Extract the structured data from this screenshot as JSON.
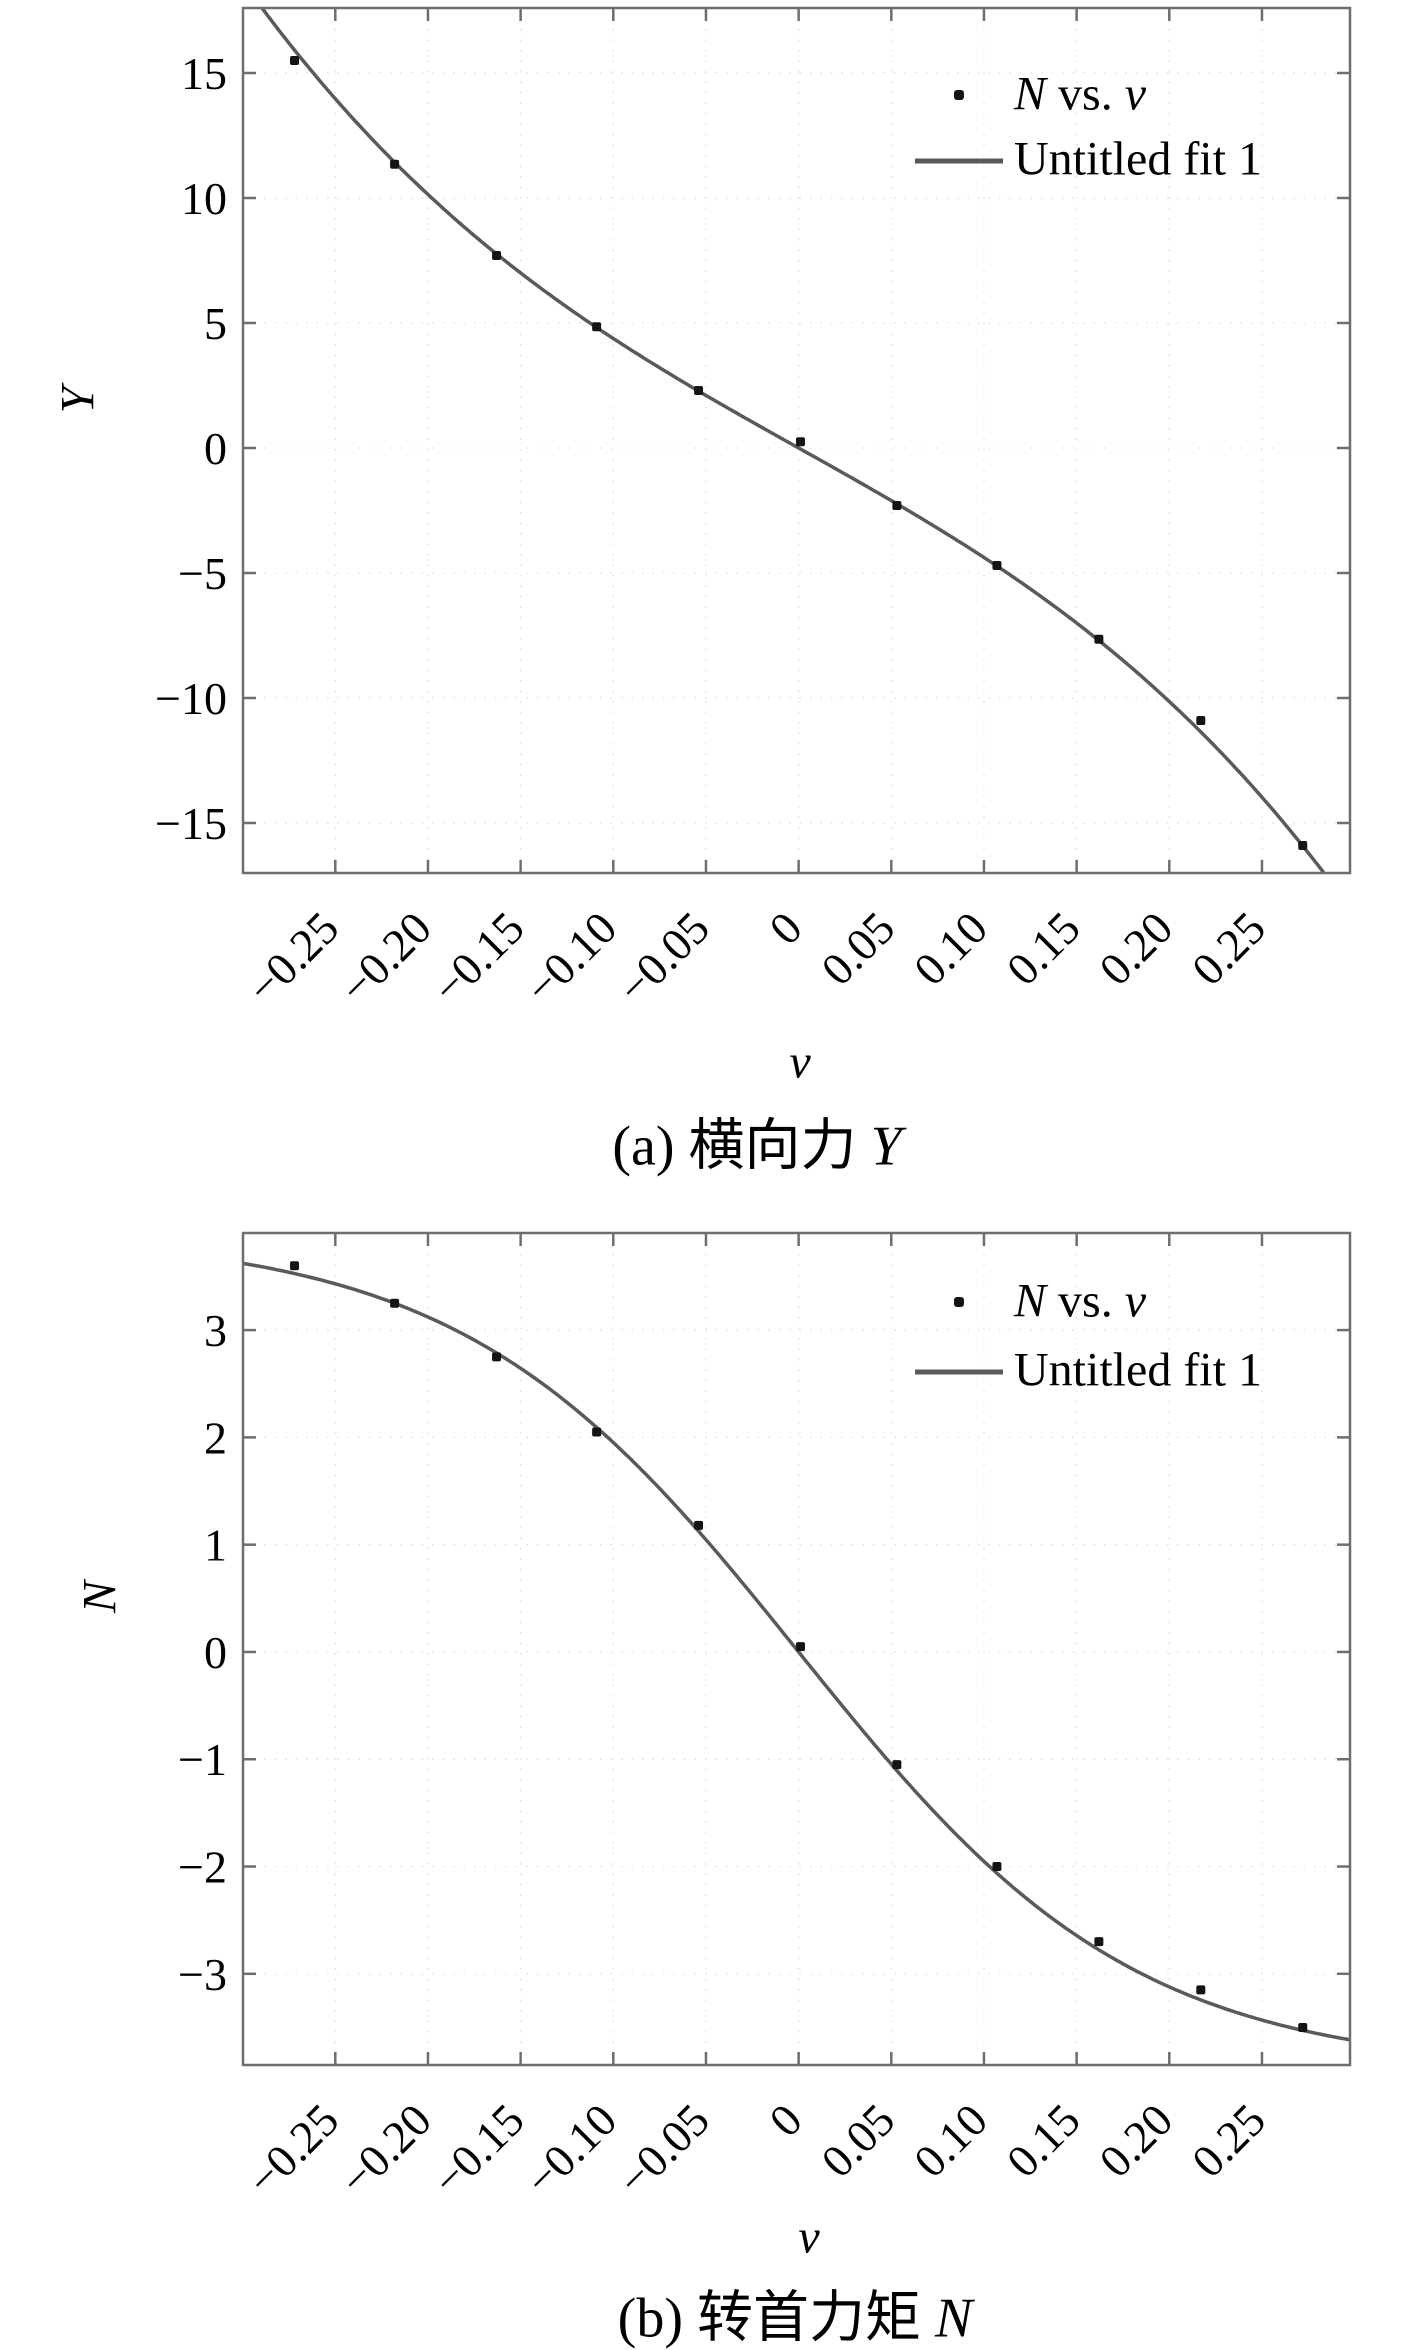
{
  "figure": {
    "background": "#ffffff"
  },
  "colors": {
    "axis_box": "#6e6e6e",
    "fit_line": "#5a5a5a",
    "marker": "#141414",
    "grid": "#c9c9c9",
    "text": "#000000"
  },
  "legend": {
    "scatter_sym1": "N",
    "scatter_mid": " vs. ",
    "scatter_sym2": "v",
    "fit_label": "Untitled fit 1"
  },
  "chart_data": [
    {
      "id": "a",
      "type": "scatter",
      "caption_prefix": "(a) 横向力 ",
      "caption_symbol": "Y",
      "xlabel": "v",
      "ylabel": "Y",
      "x_range": [
        -0.2998,
        0.2975
      ],
      "y_range": [
        -17.0,
        17.6
      ],
      "x_tick_values": [
        -0.25,
        -0.2,
        -0.15,
        -0.1,
        -0.05,
        0,
        0.05,
        0.1,
        0.15,
        0.2,
        0.25
      ],
      "x_tick_labels": [
        "−0.25",
        "−0.20",
        "−0.15",
        "−0.10",
        "−0.05",
        "0",
        "0.05",
        "0.10",
        "0.15",
        "0.20",
        "0.25"
      ],
      "y_tick_values": [
        15,
        10,
        5,
        0,
        -5,
        -10,
        -15
      ],
      "y_tick_labels": [
        "15",
        "10",
        "5",
        "0",
        "−5",
        "−10",
        "−15"
      ],
      "grid": "dotted",
      "legend_position": "top-right-inside",
      "series": [
        {
          "kind": "scatter",
          "name_parts": [
            "N",
            " vs. ",
            "v"
          ],
          "marker": "point",
          "x": [
            -0.272,
            -0.218,
            -0.163,
            -0.109,
            -0.054,
            0.001,
            0.053,
            0.107,
            0.162,
            0.217,
            0.272
          ],
          "y": [
            15.5,
            11.35,
            7.7,
            4.85,
            2.3,
            0.25,
            -2.3,
            -4.7,
            -7.65,
            -10.9,
            -15.9
          ]
        },
        {
          "kind": "fit-line",
          "name": "Untitled fit 1",
          "model": "odd-cubic",
          "coeffs": {
            "a": 41.5,
            "b": 230
          }
        }
      ]
    },
    {
      "id": "b",
      "type": "scatter",
      "caption_prefix": "(b) 转首力矩 ",
      "caption_symbol": "N",
      "xlabel": "v",
      "ylabel": "N",
      "x_range": [
        -0.2998,
        0.2975
      ],
      "y_range": [
        -3.85,
        3.905
      ],
      "x_tick_values": [
        -0.25,
        -0.2,
        -0.15,
        -0.1,
        -0.05,
        0,
        0.05,
        0.1,
        0.15,
        0.2,
        0.25
      ],
      "x_tick_labels": [
        "−0.25",
        "−0.20",
        "−0.15",
        "−0.10",
        "−0.05",
        "0",
        "0.05",
        "0.10",
        "0.15",
        "0.20",
        "0.25"
      ],
      "y_tick_values": [
        3,
        2,
        1,
        0,
        -1,
        -2,
        -3
      ],
      "y_tick_labels": [
        "3",
        "2",
        "1",
        "0",
        "−1",
        "−2",
        "−3"
      ],
      "grid": "dotted",
      "legend_position": "top-right-inside",
      "series": [
        {
          "kind": "scatter",
          "name_parts": [
            "N",
            " vs. ",
            "v"
          ],
          "marker": "point",
          "x": [
            -0.272,
            -0.218,
            -0.163,
            -0.109,
            -0.054,
            0.001,
            0.053,
            0.107,
            0.162,
            0.217,
            0.272
          ],
          "y": [
            3.6,
            3.25,
            2.75,
            2.05,
            1.18,
            0.05,
            -1.05,
            -2.0,
            -2.7,
            -3.15,
            -3.5
          ]
        },
        {
          "kind": "fit-line",
          "name": "Untitled fit 1",
          "model": "tanh",
          "coeffs": {
            "amplitude": 3.9,
            "k": 5.5
          }
        }
      ]
    }
  ]
}
